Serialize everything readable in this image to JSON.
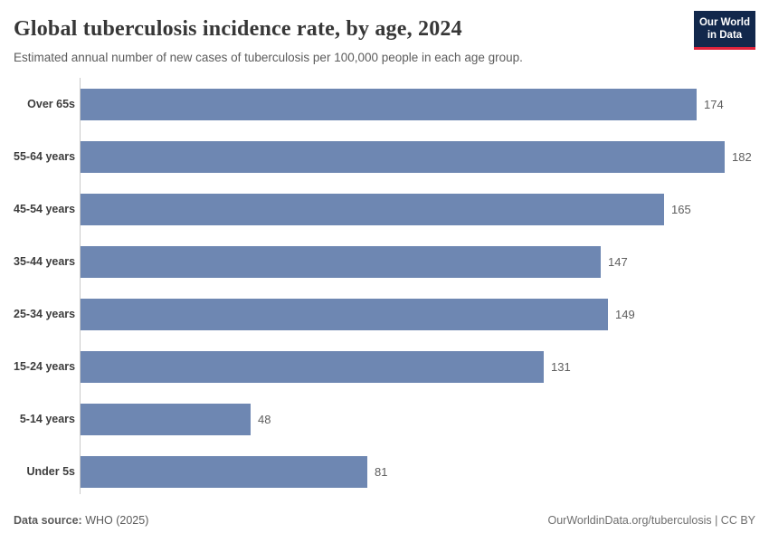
{
  "header": {
    "title": "Global tuberculosis incidence rate, by age, 2024",
    "subtitle": "Estimated annual number of new cases of tuberculosis per 100,000 people in each age group.",
    "logo": {
      "line1": "Our World",
      "line2": "in Data"
    }
  },
  "chart_data": {
    "type": "bar",
    "orientation": "horizontal",
    "title": "Global tuberculosis incidence rate, by age, 2024",
    "categories": [
      "Over 65s",
      "55-64 years",
      "45-54 years",
      "35-44 years",
      "25-34 years",
      "15-24 years",
      "5-14 years",
      "Under 5s"
    ],
    "values": [
      174,
      182,
      165,
      147,
      149,
      131,
      48,
      81
    ],
    "xlabel": "",
    "ylabel": "",
    "xlim": [
      0,
      182
    ],
    "grid": false,
    "value_labels": true,
    "legend": "none",
    "bar_color": "#6e87b2"
  },
  "footer": {
    "source_label": "Data source:",
    "source_value": "WHO (2025)",
    "link": "OurWorldinData.org/tuberculosis | CC BY"
  },
  "colors": {
    "bar": "#6e87b2",
    "title_text": "#373737",
    "subtitle_text": "#5c5c5c",
    "axis_line": "#c9c9c9",
    "logo_background": "#12284c",
    "logo_accent": "#e0233c"
  }
}
